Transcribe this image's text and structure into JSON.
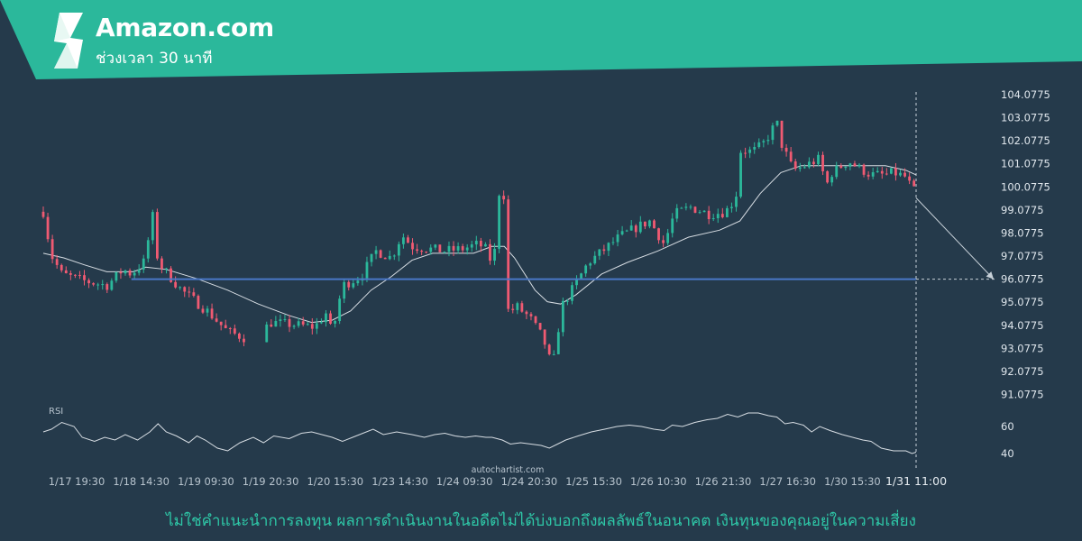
{
  "header": {
    "title": "Amazon.com",
    "subtitle": "ช่วงเวลา 30 นาที",
    "band_color": "#2bb89b",
    "logo_icon": "brand-s-icon"
  },
  "watermark": "autochartist.com",
  "disclaimer": "ไม่ใช่คำแนะนำการลงทุน ผลการดำเนินงานในอดีตไม่ได้บ่งบอกถึงผลลัพธ์ในอนาคต เงินทุนของคุณอยู่ในความเสี่ยง",
  "chart_data": {
    "type": "candlestick",
    "title": "Amazon.com",
    "subtitle": "ช่วงเวลา 30 นาที",
    "price_axis": {
      "ticks": [
        "104.0775",
        "103.0775",
        "102.0775",
        "101.0775",
        "100.0775",
        "99.0775",
        "98.0775",
        "97.0775",
        "96.0775",
        "95.0775",
        "94.0775",
        "93.0775",
        "92.0775",
        "91.0775"
      ],
      "range": [
        91.0775,
        104.0775
      ]
    },
    "time_axis": {
      "ticks": [
        "1/17 19:30",
        "1/18 14:30",
        "1/19 09:30",
        "1/19 20:30",
        "1/20 15:30",
        "1/23 14:30",
        "1/24 09:30",
        "1/24 20:30",
        "1/25 15:30",
        "1/26 10:30",
        "1/26 21:30",
        "1/27 16:30",
        "1/30 15:30"
      ],
      "current_label": "1/31 11:00"
    },
    "price_path": [
      [
        0,
        99.0
      ],
      [
        8,
        97.1
      ],
      [
        18,
        96.3
      ],
      [
        40,
        96.0
      ],
      [
        62,
        95.8
      ],
      [
        78,
        96.5
      ],
      [
        86,
        96.3
      ],
      [
        100,
        96.9
      ],
      [
        106,
        99.1
      ],
      [
        112,
        96.8
      ],
      [
        135,
        95.6
      ],
      [
        160,
        94.7
      ],
      [
        180,
        93.8
      ],
      [
        205,
        93.4
      ],
      [
        222,
        94.2
      ],
      [
        245,
        94.1
      ],
      [
        265,
        94.0
      ],
      [
        276,
        94.6
      ],
      [
        282,
        93.7
      ],
      [
        292,
        95.8
      ],
      [
        310,
        96.2
      ],
      [
        325,
        97.3
      ],
      [
        340,
        97.0
      ],
      [
        350,
        98.0
      ],
      [
        360,
        97.5
      ],
      [
        375,
        97.4
      ],
      [
        392,
        97.3
      ],
      [
        410,
        97.4
      ],
      [
        425,
        97.6
      ],
      [
        434,
        97.3
      ],
      [
        440,
        96.3
      ],
      [
        442,
        99.9
      ],
      [
        450,
        99.7
      ],
      [
        454,
        94.6
      ],
      [
        462,
        94.9
      ],
      [
        475,
        94.4
      ],
      [
        488,
        93.5
      ],
      [
        497,
        92.2
      ],
      [
        506,
        94.9
      ],
      [
        516,
        95.6
      ],
      [
        532,
        96.8
      ],
      [
        546,
        97.3
      ],
      [
        562,
        97.9
      ],
      [
        578,
        98.3
      ],
      [
        592,
        98.6
      ],
      [
        606,
        97.6
      ],
      [
        616,
        98.9
      ],
      [
        632,
        99.2
      ],
      [
        650,
        98.9
      ],
      [
        666,
        99.0
      ],
      [
        676,
        99.6
      ],
      [
        681,
        101.7
      ],
      [
        692,
        101.6
      ],
      [
        702,
        101.9
      ],
      [
        708,
        102.3
      ],
      [
        716,
        102.9
      ],
      [
        720,
        102.0
      ],
      [
        732,
        100.8
      ],
      [
        744,
        101.0
      ],
      [
        758,
        101.3
      ],
      [
        764,
        100.1
      ],
      [
        770,
        100.7
      ],
      [
        786,
        101.2
      ],
      [
        796,
        100.9
      ],
      [
        808,
        100.6
      ],
      [
        822,
        100.6
      ],
      [
        830,
        100.7
      ],
      [
        842,
        100.5
      ],
      [
        848,
        100.0
      ],
      [
        852,
        99.8
      ]
    ],
    "moving_average": [
      [
        0,
        97.2
      ],
      [
        20,
        97.0
      ],
      [
        40,
        96.7
      ],
      [
        62,
        96.4
      ],
      [
        88,
        96.4
      ],
      [
        100,
        96.6
      ],
      [
        120,
        96.5
      ],
      [
        150,
        96.1
      ],
      [
        180,
        95.6
      ],
      [
        210,
        95.0
      ],
      [
        240,
        94.5
      ],
      [
        262,
        94.2
      ],
      [
        282,
        94.3
      ],
      [
        300,
        94.7
      ],
      [
        320,
        95.6
      ],
      [
        340,
        96.2
      ],
      [
        360,
        96.9
      ],
      [
        380,
        97.2
      ],
      [
        400,
        97.2
      ],
      [
        420,
        97.2
      ],
      [
        438,
        97.5
      ],
      [
        450,
        97.5
      ],
      [
        460,
        97.0
      ],
      [
        480,
        95.6
      ],
      [
        492,
        95.1
      ],
      [
        505,
        95.0
      ],
      [
        520,
        95.4
      ],
      [
        545,
        96.3
      ],
      [
        570,
        96.8
      ],
      [
        600,
        97.3
      ],
      [
        630,
        97.9
      ],
      [
        660,
        98.2
      ],
      [
        680,
        98.6
      ],
      [
        700,
        99.8
      ],
      [
        720,
        100.7
      ],
      [
        740,
        101.0
      ],
      [
        760,
        101.0
      ],
      [
        780,
        101.0
      ],
      [
        800,
        101.0
      ],
      [
        822,
        101.0
      ],
      [
        842,
        100.8
      ],
      [
        852,
        100.6
      ]
    ],
    "support_level": 96.0775,
    "forecast": {
      "from": [
        852,
        99.6
      ],
      "to": [
        940,
        96.0775
      ]
    },
    "rsi": {
      "label": "RSI",
      "ticks": [
        "60",
        "40"
      ],
      "path": [
        [
          0,
          56
        ],
        [
          8,
          58
        ],
        [
          18,
          63
        ],
        [
          30,
          60
        ],
        [
          38,
          52
        ],
        [
          50,
          49
        ],
        [
          60,
          52
        ],
        [
          70,
          50
        ],
        [
          80,
          54
        ],
        [
          92,
          50
        ],
        [
          104,
          56
        ],
        [
          112,
          62
        ],
        [
          120,
          56
        ],
        [
          130,
          53
        ],
        [
          142,
          48
        ],
        [
          150,
          53
        ],
        [
          158,
          50
        ],
        [
          170,
          44
        ],
        [
          180,
          42
        ],
        [
          192,
          48
        ],
        [
          205,
          52
        ],
        [
          215,
          48
        ],
        [
          225,
          53
        ],
        [
          240,
          51
        ],
        [
          252,
          55
        ],
        [
          262,
          56
        ],
        [
          272,
          54
        ],
        [
          282,
          52
        ],
        [
          292,
          49
        ],
        [
          302,
          52
        ],
        [
          312,
          55
        ],
        [
          322,
          58
        ],
        [
          332,
          54
        ],
        [
          345,
          56
        ],
        [
          360,
          54
        ],
        [
          372,
          52
        ],
        [
          382,
          54
        ],
        [
          392,
          55
        ],
        [
          402,
          53
        ],
        [
          412,
          52
        ],
        [
          422,
          53
        ],
        [
          432,
          52
        ],
        [
          438,
          52
        ],
        [
          448,
          50
        ],
        [
          456,
          47
        ],
        [
          466,
          48
        ],
        [
          476,
          47
        ],
        [
          486,
          46
        ],
        [
          494,
          44
        ],
        [
          502,
          47
        ],
        [
          510,
          50
        ],
        [
          522,
          53
        ],
        [
          535,
          56
        ],
        [
          548,
          58
        ],
        [
          560,
          60
        ],
        [
          572,
          61
        ],
        [
          584,
          60
        ],
        [
          596,
          58
        ],
        [
          606,
          57
        ],
        [
          614,
          61
        ],
        [
          624,
          60
        ],
        [
          636,
          63
        ],
        [
          648,
          65
        ],
        [
          658,
          66
        ],
        [
          668,
          69
        ],
        [
          678,
          67
        ],
        [
          688,
          70
        ],
        [
          698,
          70
        ],
        [
          708,
          68
        ],
        [
          716,
          67
        ],
        [
          724,
          62
        ],
        [
          732,
          63
        ],
        [
          742,
          61
        ],
        [
          750,
          56
        ],
        [
          758,
          60
        ],
        [
          768,
          57
        ],
        [
          780,
          54
        ],
        [
          790,
          52
        ],
        [
          800,
          50
        ],
        [
          808,
          49
        ],
        [
          818,
          44
        ],
        [
          830,
          42
        ],
        [
          842,
          42
        ],
        [
          848,
          40
        ],
        [
          852,
          41
        ]
      ]
    },
    "colors": {
      "background": "#253a4b",
      "up_candle": "#2bb89b",
      "down_candle": "#f05a72",
      "support_line": "#4a78c8",
      "moving_average": "#d7dde3",
      "rsi_line": "#d7dde3",
      "accent": "#2bb89b"
    },
    "grid": false
  }
}
